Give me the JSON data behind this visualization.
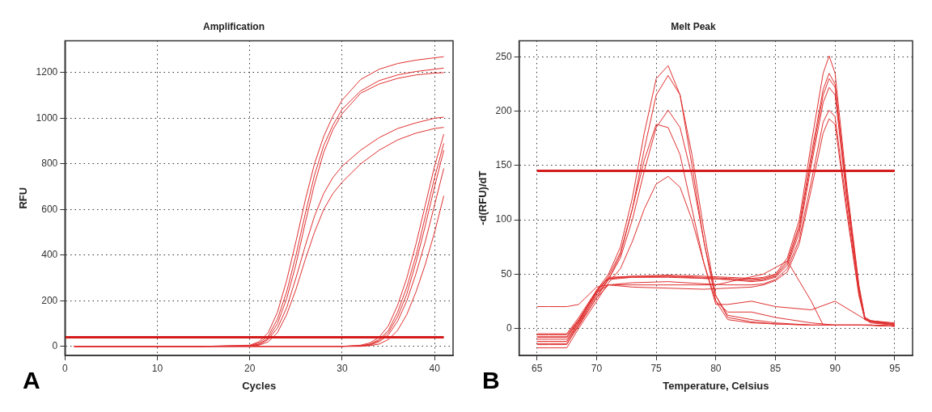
{
  "chart_data": [
    {
      "type": "line",
      "title": "Amplification",
      "xlabel": "Cycles",
      "ylabel": "RFU",
      "xlim": [
        0,
        42
      ],
      "ylim": [
        -40,
        1340
      ],
      "xticks": [
        0,
        10,
        20,
        30,
        40
      ],
      "yticks": [
        0,
        200,
        400,
        600,
        800,
        1000,
        1200
      ],
      "grid": true,
      "legend": false,
      "marker": "none",
      "line_style": "solid",
      "annotations": [
        "A"
      ],
      "ref_lines": [
        {
          "axis": "y",
          "value": 40,
          "color": "#d41c1c"
        }
      ],
      "series": [
        {
          "color": "#e03030",
          "x": [
            1,
            5,
            10,
            15,
            20,
            21,
            22,
            23,
            24,
            25,
            26,
            27,
            28,
            29,
            30,
            32,
            34,
            36,
            38,
            40,
            41
          ],
          "values": [
            0,
            0,
            0,
            0,
            5,
            20,
            60,
            150,
            290,
            460,
            640,
            800,
            920,
            1010,
            1080,
            1170,
            1215,
            1240,
            1255,
            1265,
            1270
          ]
        },
        {
          "color": "#e03030",
          "x": [
            1,
            5,
            10,
            15,
            20,
            21,
            22,
            23,
            24,
            25,
            26,
            27,
            28,
            29,
            30,
            32,
            34,
            36,
            38,
            40,
            41
          ],
          "values": [
            0,
            0,
            0,
            0,
            3,
            15,
            45,
            120,
            240,
            400,
            580,
            750,
            880,
            970,
            1040,
            1120,
            1165,
            1190,
            1205,
            1215,
            1220
          ]
        },
        {
          "color": "#e03030",
          "x": [
            1,
            5,
            10,
            15,
            20,
            21,
            22,
            23,
            24,
            25,
            26,
            27,
            28,
            29,
            30,
            32,
            34,
            36,
            38,
            40,
            41
          ],
          "values": [
            0,
            0,
            0,
            0,
            2,
            10,
            35,
            100,
            210,
            360,
            540,
            710,
            850,
            950,
            1020,
            1110,
            1150,
            1175,
            1190,
            1198,
            1200
          ]
        },
        {
          "color": "#e03030",
          "x": [
            1,
            5,
            10,
            15,
            20,
            21,
            22,
            23,
            24,
            25,
            26,
            27,
            28,
            29,
            30,
            32,
            34,
            36,
            38,
            40,
            41
          ],
          "values": [
            0,
            0,
            0,
            0,
            2,
            8,
            30,
            80,
            170,
            300,
            440,
            570,
            670,
            740,
            790,
            860,
            915,
            955,
            980,
            1000,
            1005
          ]
        },
        {
          "color": "#e03030",
          "x": [
            1,
            5,
            10,
            15,
            20,
            21,
            22,
            23,
            24,
            25,
            26,
            27,
            28,
            29,
            30,
            32,
            34,
            36,
            38,
            40,
            41
          ],
          "values": [
            0,
            0,
            0,
            0,
            1,
            5,
            20,
            60,
            140,
            250,
            380,
            500,
            600,
            670,
            720,
            800,
            860,
            905,
            935,
            955,
            960
          ]
        },
        {
          "color": "#e03030",
          "x": [
            1,
            10,
            20,
            30,
            32,
            33,
            34,
            35,
            36,
            37,
            38,
            39,
            40,
            41
          ],
          "values": [
            0,
            0,
            0,
            0,
            5,
            15,
            40,
            90,
            180,
            300,
            450,
            620,
            790,
            930
          ]
        },
        {
          "color": "#e03030",
          "x": [
            1,
            10,
            20,
            30,
            32,
            33,
            34,
            35,
            36,
            37,
            38,
            39,
            40,
            41
          ],
          "values": [
            0,
            0,
            0,
            0,
            3,
            10,
            30,
            70,
            150,
            260,
            400,
            570,
            740,
            890
          ]
        },
        {
          "color": "#e03030",
          "x": [
            1,
            10,
            20,
            30,
            32,
            33,
            34,
            35,
            36,
            37,
            38,
            39,
            40,
            41
          ],
          "values": [
            0,
            0,
            0,
            0,
            2,
            8,
            25,
            60,
            130,
            230,
            370,
            530,
            700,
            860
          ]
        },
        {
          "color": "#e03030",
          "x": [
            1,
            10,
            20,
            30,
            32,
            33,
            34,
            35,
            36,
            37,
            38,
            39,
            40,
            41
          ],
          "values": [
            0,
            0,
            0,
            0,
            1,
            5,
            20,
            50,
            110,
            200,
            320,
            460,
            620,
            780
          ]
        },
        {
          "color": "#e03030",
          "x": [
            1,
            10,
            20,
            30,
            32,
            33,
            34,
            35,
            36,
            37,
            38,
            39,
            40,
            41
          ],
          "values": [
            0,
            0,
            0,
            0,
            0,
            3,
            10,
            30,
            70,
            140,
            240,
            360,
            500,
            660
          ]
        }
      ]
    },
    {
      "type": "line",
      "title": "Melt Peak",
      "xlabel": "Temperature, Celsius",
      "ylabel": "-d(RFU)/dT",
      "xlim": [
        63.5,
        96.5
      ],
      "ylim": [
        -25,
        265
      ],
      "xticks": [
        65,
        70,
        75,
        80,
        85,
        90,
        95
      ],
      "yticks": [
        0,
        50,
        100,
        150,
        200,
        250
      ],
      "grid": true,
      "legend": false,
      "marker": "none",
      "line_style": "solid",
      "annotations": [
        "B"
      ],
      "ref_lines": [
        {
          "axis": "y",
          "value": 145,
          "color": "#d41c1c"
        }
      ],
      "series": [
        {
          "color": "#e03030",
          "x": [
            65,
            66,
            67.5,
            68.5,
            70,
            71,
            72,
            73,
            74,
            75,
            76,
            77,
            78,
            79,
            80,
            81,
            83,
            85,
            88,
            90,
            93,
            95
          ],
          "values": [
            -5,
            -5,
            -5,
            10,
            35,
            50,
            75,
            120,
            180,
            230,
            242,
            215,
            150,
            80,
            25,
            8,
            5,
            4,
            3,
            3,
            3,
            2
          ]
        },
        {
          "color": "#e03030",
          "x": [
            65,
            66,
            67.5,
            68.5,
            70,
            71,
            72,
            73,
            74,
            75,
            76,
            77,
            78,
            79,
            80,
            81,
            83,
            85,
            88,
            90,
            93,
            95
          ],
          "values": [
            -8,
            -8,
            -8,
            8,
            33,
            48,
            70,
            110,
            165,
            215,
            233,
            215,
            160,
            90,
            30,
            10,
            6,
            4,
            3,
            3,
            3,
            2
          ]
        },
        {
          "color": "#e03030",
          "x": [
            65,
            66,
            67.5,
            68.5,
            70,
            71,
            72,
            73,
            74,
            75,
            76,
            77,
            78,
            79,
            80,
            81,
            83,
            85,
            88,
            90,
            93,
            95
          ],
          "values": [
            -12,
            -12,
            -12,
            5,
            30,
            45,
            65,
            100,
            145,
            185,
            201,
            185,
            140,
            80,
            30,
            12,
            8,
            5,
            3,
            3,
            3,
            2
          ]
        },
        {
          "color": "#e03030",
          "x": [
            65,
            66,
            67.5,
            68.5,
            70,
            71,
            72,
            73,
            74,
            75,
            76,
            77,
            78,
            79,
            80,
            81,
            83,
            85,
            88,
            90,
            93,
            95
          ],
          "values": [
            -15,
            -15,
            -15,
            3,
            28,
            45,
            68,
            110,
            155,
            188,
            185,
            160,
            110,
            60,
            22,
            22,
            25,
            20,
            17,
            25,
            5,
            3
          ]
        },
        {
          "color": "#e03030",
          "x": [
            65,
            66,
            67.5,
            68.5,
            70,
            71,
            72,
            73,
            74,
            75,
            76,
            77,
            78,
            79,
            80,
            81,
            83,
            85,
            88,
            90,
            93,
            95
          ],
          "values": [
            -18,
            -18,
            -18,
            0,
            25,
            42,
            55,
            80,
            110,
            133,
            140,
            130,
            100,
            60,
            25,
            15,
            15,
            10,
            5,
            3,
            3,
            2
          ]
        },
        {
          "color": "#e03030",
          "x": [
            65,
            66,
            67.5,
            68.5,
            70,
            71,
            73,
            76,
            79,
            81,
            83,
            84,
            85,
            86,
            87,
            88,
            89,
            89.5,
            90,
            91,
            92,
            92.5,
            93,
            95
          ],
          "values": [
            -10,
            -10,
            -10,
            5,
            35,
            47,
            48,
            49,
            48,
            47,
            46,
            47,
            50,
            65,
            100,
            170,
            235,
            251,
            235,
            130,
            40,
            10,
            7,
            5
          ]
        },
        {
          "color": "#e03030",
          "x": [
            65,
            66,
            67.5,
            68.5,
            70,
            71,
            73,
            76,
            79,
            81,
            83,
            84,
            85,
            86,
            87,
            88,
            89,
            89.5,
            90,
            91,
            92,
            92.5,
            93,
            95
          ],
          "values": [
            -8,
            -8,
            -8,
            7,
            35,
            46,
            48,
            48,
            47,
            46,
            45,
            46,
            49,
            62,
            95,
            160,
            220,
            235,
            225,
            125,
            38,
            10,
            7,
            4
          ]
        },
        {
          "color": "#e03030",
          "x": [
            65,
            66,
            67.5,
            68.5,
            70,
            71,
            73,
            76,
            79,
            81,
            83,
            84,
            85,
            86,
            87,
            88,
            89,
            89.5,
            90,
            91,
            92,
            92.5,
            93,
            95
          ],
          "values": [
            -12,
            -12,
            -12,
            3,
            32,
            45,
            47,
            47,
            46,
            45,
            44,
            45,
            48,
            60,
            92,
            155,
            215,
            230,
            222,
            122,
            36,
            9,
            7,
            4
          ]
        },
        {
          "color": "#e03030",
          "x": [
            65,
            66,
            67.5,
            68.5,
            70,
            71,
            73,
            76,
            79,
            81,
            83,
            84,
            85,
            86,
            87,
            88,
            89,
            89.5,
            90,
            91,
            92,
            92.5,
            93,
            95
          ],
          "values": [
            -6,
            -6,
            -6,
            8,
            34,
            46,
            47,
            48,
            46,
            45,
            43,
            44,
            47,
            58,
            88,
            150,
            208,
            222,
            215,
            118,
            35,
            9,
            6,
            4
          ]
        },
        {
          "color": "#e03030",
          "x": [
            65,
            66,
            67.5,
            68.5,
            70,
            71,
            73,
            76,
            79,
            81,
            83,
            84,
            85,
            86,
            87,
            88,
            89,
            89.5,
            90,
            91,
            92,
            92.5,
            93,
            95
          ],
          "values": [
            -14,
            -14,
            -14,
            2,
            28,
            40,
            42,
            43,
            41,
            40,
            40,
            41,
            45,
            55,
            82,
            135,
            190,
            201,
            195,
            110,
            32,
            8,
            6,
            3
          ]
        },
        {
          "color": "#e03030",
          "x": [
            65,
            66,
            67.5,
            68.5,
            70,
            71,
            73,
            76,
            79,
            81,
            83,
            84,
            85,
            86,
            87,
            88,
            89,
            89.5,
            90,
            91,
            92,
            92.5,
            93,
            95
          ],
          "values": [
            20,
            20,
            20,
            22,
            38,
            40,
            38,
            37,
            36,
            37,
            38,
            40,
            44,
            52,
            78,
            128,
            180,
            193,
            188,
            105,
            30,
            8,
            6,
            3
          ]
        },
        {
          "color": "#e03030",
          "x": [
            65,
            67.5,
            68.5,
            70,
            71,
            75,
            80,
            84,
            86,
            88,
            89,
            92,
            95
          ],
          "values": [
            -8,
            -8,
            6,
            33,
            40,
            40,
            40,
            50,
            62,
            25,
            3,
            3,
            2
          ]
        }
      ]
    }
  ]
}
